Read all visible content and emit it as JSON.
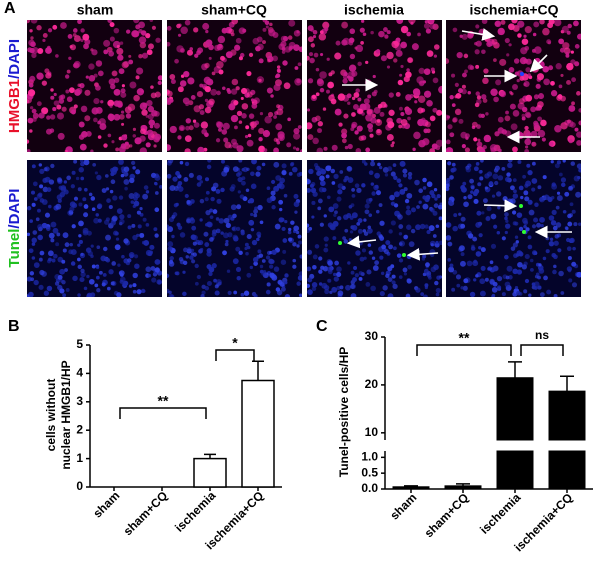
{
  "panel_a": {
    "label": "A",
    "columns": [
      "sham",
      "sham+CQ",
      "ischemia",
      "ischemia+CQ"
    ],
    "row_labels": [
      [
        "HMGB1",
        "/DAPI"
      ],
      [
        "Tunel",
        "/DAPI"
      ]
    ]
  },
  "chart_data": [
    {
      "type": "bar",
      "panel_label": "B",
      "ylabel": [
        "cells without",
        "nuclear HMGB1/HP"
      ],
      "categories": [
        "sham",
        "sham+CQ",
        "ischemia",
        "ischemia+CQ"
      ],
      "values": [
        0,
        0,
        1.0,
        3.75
      ],
      "errors": [
        0,
        0,
        0.15,
        0.68
      ],
      "ylim": [
        0,
        5
      ],
      "yticks": [
        0,
        1,
        2,
        3,
        4,
        5
      ],
      "color": "#ffffff",
      "edge_color": "#000000",
      "annotations": [
        {
          "text": "**",
          "from": 0,
          "to": 2
        },
        {
          "text": "*",
          "from": 2,
          "to": 3
        }
      ]
    },
    {
      "type": "broken_bar",
      "panel_label": "C",
      "ylabel": "Tunel-positive cells/HP",
      "categories": [
        "sham",
        "sham+CQ",
        "ischemia",
        "ischemia+CQ"
      ],
      "values": [
        0.07,
        0.1,
        21.5,
        18.7
      ],
      "errors": [
        0.03,
        0.06,
        3.3,
        3.1
      ],
      "y_segments": [
        {
          "ylim": [
            0,
            1.2
          ],
          "yticks": [
            {
              "value": 0,
              "label": "0.0"
            },
            {
              "value": 0.5,
              "label": "0.5"
            },
            {
              "value": 1,
              "label": "1.0"
            }
          ]
        },
        {
          "ylim": [
            8.5,
            30
          ],
          "yticks": [
            10,
            20,
            30
          ]
        }
      ],
      "color": "#000000",
      "edge_color": "#000000",
      "annotations": [
        {
          "text": "**",
          "from": 0,
          "to": 2
        },
        {
          "text": "ns",
          "from": 2,
          "to": 3
        }
      ]
    }
  ]
}
